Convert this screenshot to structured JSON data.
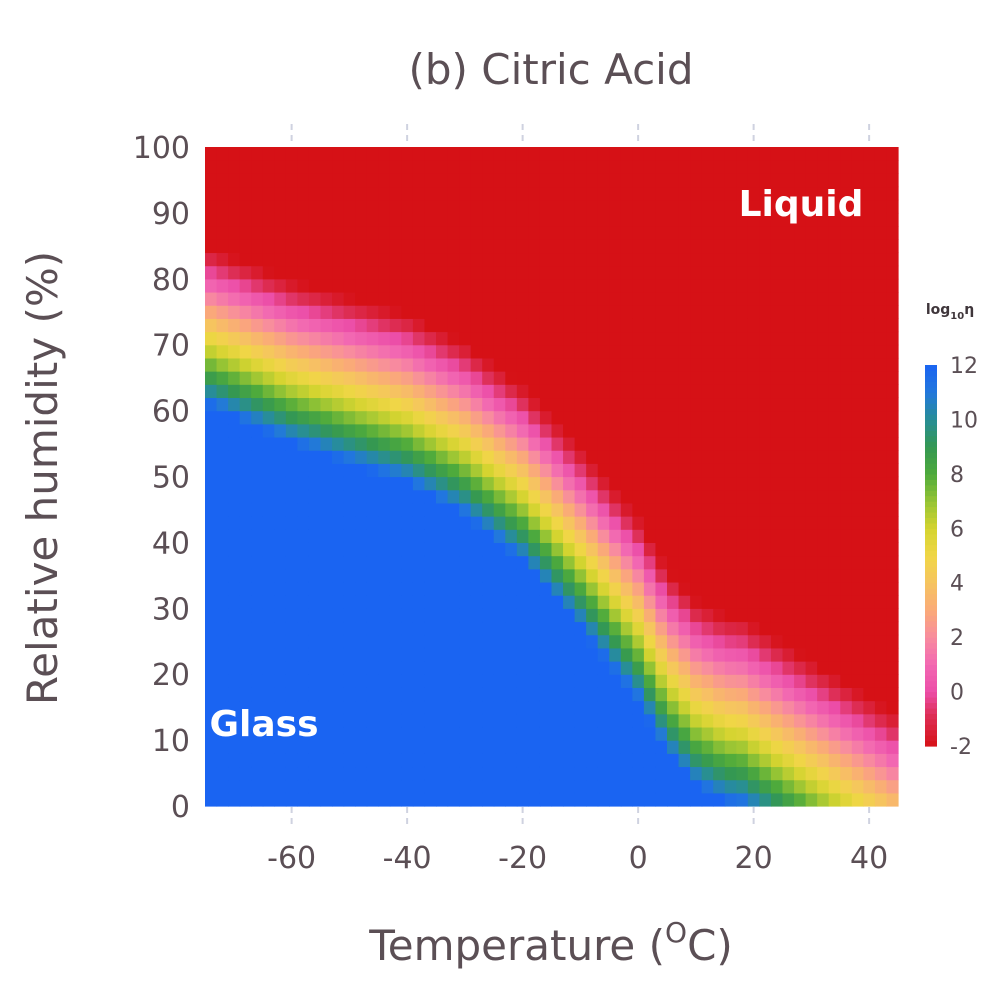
{
  "chart_data": {
    "type": "heatmap",
    "title": "(b) Citric Acid",
    "xlabel": "Temperature (",
    "xlabel_sup": "O",
    "xlabel_end": "C)",
    "ylabel": "Relative humidity (%)",
    "xlim": [
      -75,
      45
    ],
    "ylim": [
      0,
      100
    ],
    "x_ticks": [
      -60,
      -40,
      -20,
      0,
      20,
      40
    ],
    "y_ticks": [
      0,
      10,
      20,
      30,
      40,
      50,
      60,
      70,
      80,
      90,
      100
    ],
    "x_tick_labels": [
      "-60",
      "-40",
      "-20",
      "0",
      "20",
      "40"
    ],
    "y_tick_labels": [
      "0",
      "10",
      "20",
      "30",
      "40",
      "50",
      "60",
      "70",
      "80",
      "90",
      "100"
    ],
    "z_label": "log",
    "z_label_sub": "10",
    "z_label_end": "η",
    "zlim": [
      -2,
      12
    ],
    "colorbar_ticks": [
      -2,
      0,
      2,
      4,
      6,
      8,
      10,
      12
    ],
    "colorbar_tick_labels": [
      "-2",
      "0",
      "2",
      "4",
      "6",
      "8",
      "10",
      "12"
    ],
    "annotations": [
      {
        "text": "Liquid",
        "x": 37,
        "y": 91
      },
      {
        "text": "Glass",
        "x": -66,
        "y": 12
      }
    ],
    "glass_boundary_rh_at_T": {
      "T": [
        -75,
        -70,
        -60,
        -50,
        -40,
        -30,
        -20,
        -10,
        0,
        5,
        10,
        15,
        18
      ],
      "RH": [
        61,
        59,
        55,
        52,
        49,
        44,
        37,
        27,
        16,
        8,
        3,
        0.5,
        0
      ]
    },
    "colors": {
      "glass": "#1a64f2",
      "liquid": "#d71014",
      "text": "#5b4f55",
      "grid_tick": "#cfd2e0"
    }
  }
}
